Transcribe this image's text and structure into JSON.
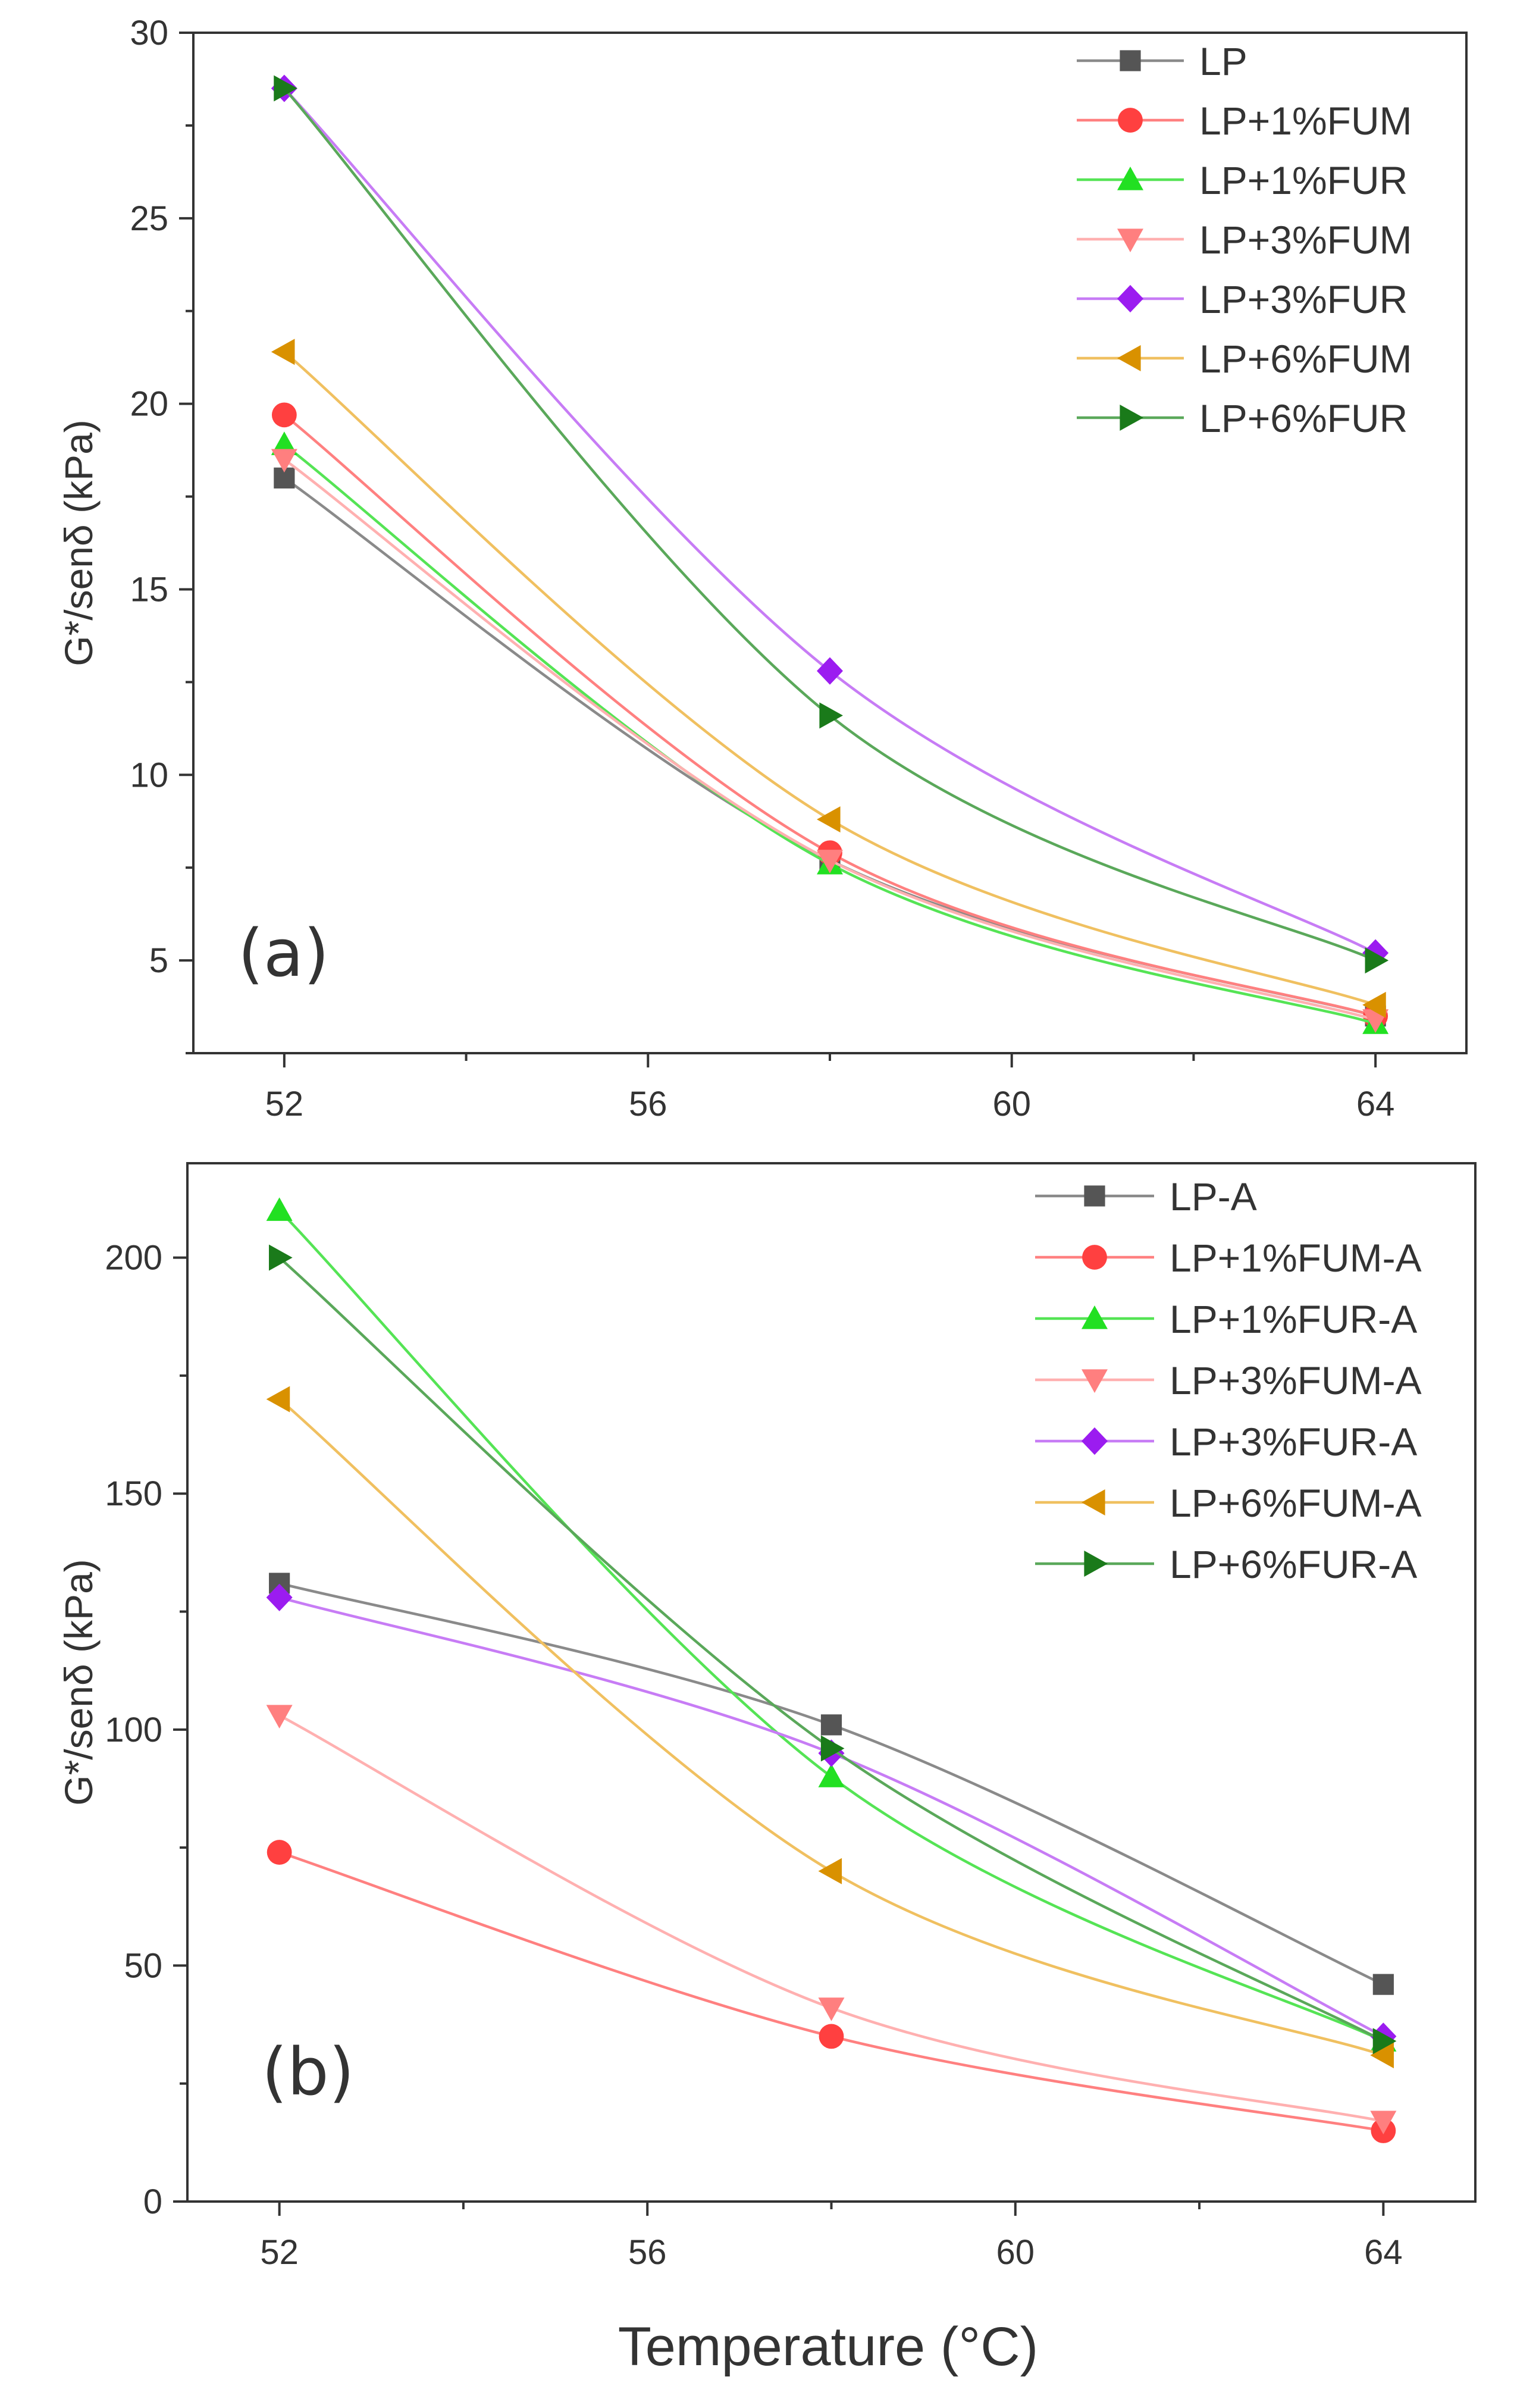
{
  "figure": {
    "xlabel": "Temperature (°C)"
  },
  "chart_data": [
    {
      "type": "line",
      "panel_label": "(a)",
      "ylabel": "G*/senδ (kPa)",
      "x": [
        52,
        58,
        64
      ],
      "xticks": [
        52,
        56,
        60,
        64
      ],
      "xlim": [
        51,
        65
      ],
      "ylim": [
        2.5,
        30
      ],
      "yticks": [
        5,
        10,
        15,
        20,
        25,
        30
      ],
      "legend_position": "top-right",
      "series": [
        {
          "name": "LP",
          "values": [
            18.0,
            7.7,
            3.5
          ],
          "color": "#555555",
          "line_color": "#8a8a8a",
          "marker": "square"
        },
        {
          "name": "LP+1%FUM",
          "values": [
            19.7,
            7.9,
            3.5
          ],
          "color": "#ff4040",
          "line_color": "#ff8080",
          "marker": "circle"
        },
        {
          "name": "LP+1%FUR",
          "values": [
            18.9,
            7.6,
            3.3
          ],
          "color": "#22e022",
          "line_color": "#55e455",
          "marker": "triangle-up"
        },
        {
          "name": "LP+3%FUM",
          "values": [
            18.5,
            7.7,
            3.4
          ],
          "color": "#ff7f7f",
          "line_color": "#ffb0b0",
          "marker": "triangle-down"
        },
        {
          "name": "LP+3%FUR",
          "values": [
            28.5,
            12.8,
            5.2
          ],
          "color": "#9b1cf0",
          "line_color": "#c77cf5",
          "marker": "diamond"
        },
        {
          "name": "LP+6%FUM",
          "values": [
            21.4,
            8.8,
            3.8
          ],
          "color": "#d99100",
          "line_color": "#f0c060",
          "marker": "triangle-left"
        },
        {
          "name": "LP+6%FUR",
          "values": [
            28.5,
            11.6,
            5.0
          ],
          "color": "#1a7a1a",
          "line_color": "#5aa85a",
          "marker": "triangle-right"
        }
      ]
    },
    {
      "type": "line",
      "panel_label": "(b)",
      "ylabel": "G*/senδ (kPa)",
      "x": [
        52,
        58,
        64
      ],
      "xticks": [
        52,
        56,
        60,
        64
      ],
      "xlim": [
        51,
        65
      ],
      "ylim": [
        0,
        220
      ],
      "yticks": [
        0,
        50,
        100,
        150,
        200
      ],
      "legend_position": "top-right",
      "series": [
        {
          "name": "LP-A",
          "values": [
            131,
            101,
            46
          ],
          "color": "#555555",
          "line_color": "#8a8a8a",
          "marker": "square"
        },
        {
          "name": "LP+1%FUM-A",
          "values": [
            74,
            35,
            15
          ],
          "color": "#ff4040",
          "line_color": "#ff8080",
          "marker": "circle"
        },
        {
          "name": "LP+1%FUR-A",
          "values": [
            210,
            90,
            34
          ],
          "color": "#22e022",
          "line_color": "#55e455",
          "marker": "triangle-up"
        },
        {
          "name": "LP+3%FUM-A",
          "values": [
            103,
            41,
            17
          ],
          "color": "#ff7f7f",
          "line_color": "#ffb0b0",
          "marker": "triangle-down"
        },
        {
          "name": "LP+3%FUR-A",
          "values": [
            128,
            95,
            35
          ],
          "color": "#9b1cf0",
          "line_color": "#c77cf5",
          "marker": "diamond"
        },
        {
          "name": "LP+6%FUM-A",
          "values": [
            170,
            70,
            31
          ],
          "color": "#d99100",
          "line_color": "#f0c060",
          "marker": "triangle-left"
        },
        {
          "name": "LP+6%FUR-A",
          "values": [
            200,
            96,
            34
          ],
          "color": "#1a7a1a",
          "line_color": "#5aa85a",
          "marker": "triangle-right"
        }
      ]
    }
  ]
}
